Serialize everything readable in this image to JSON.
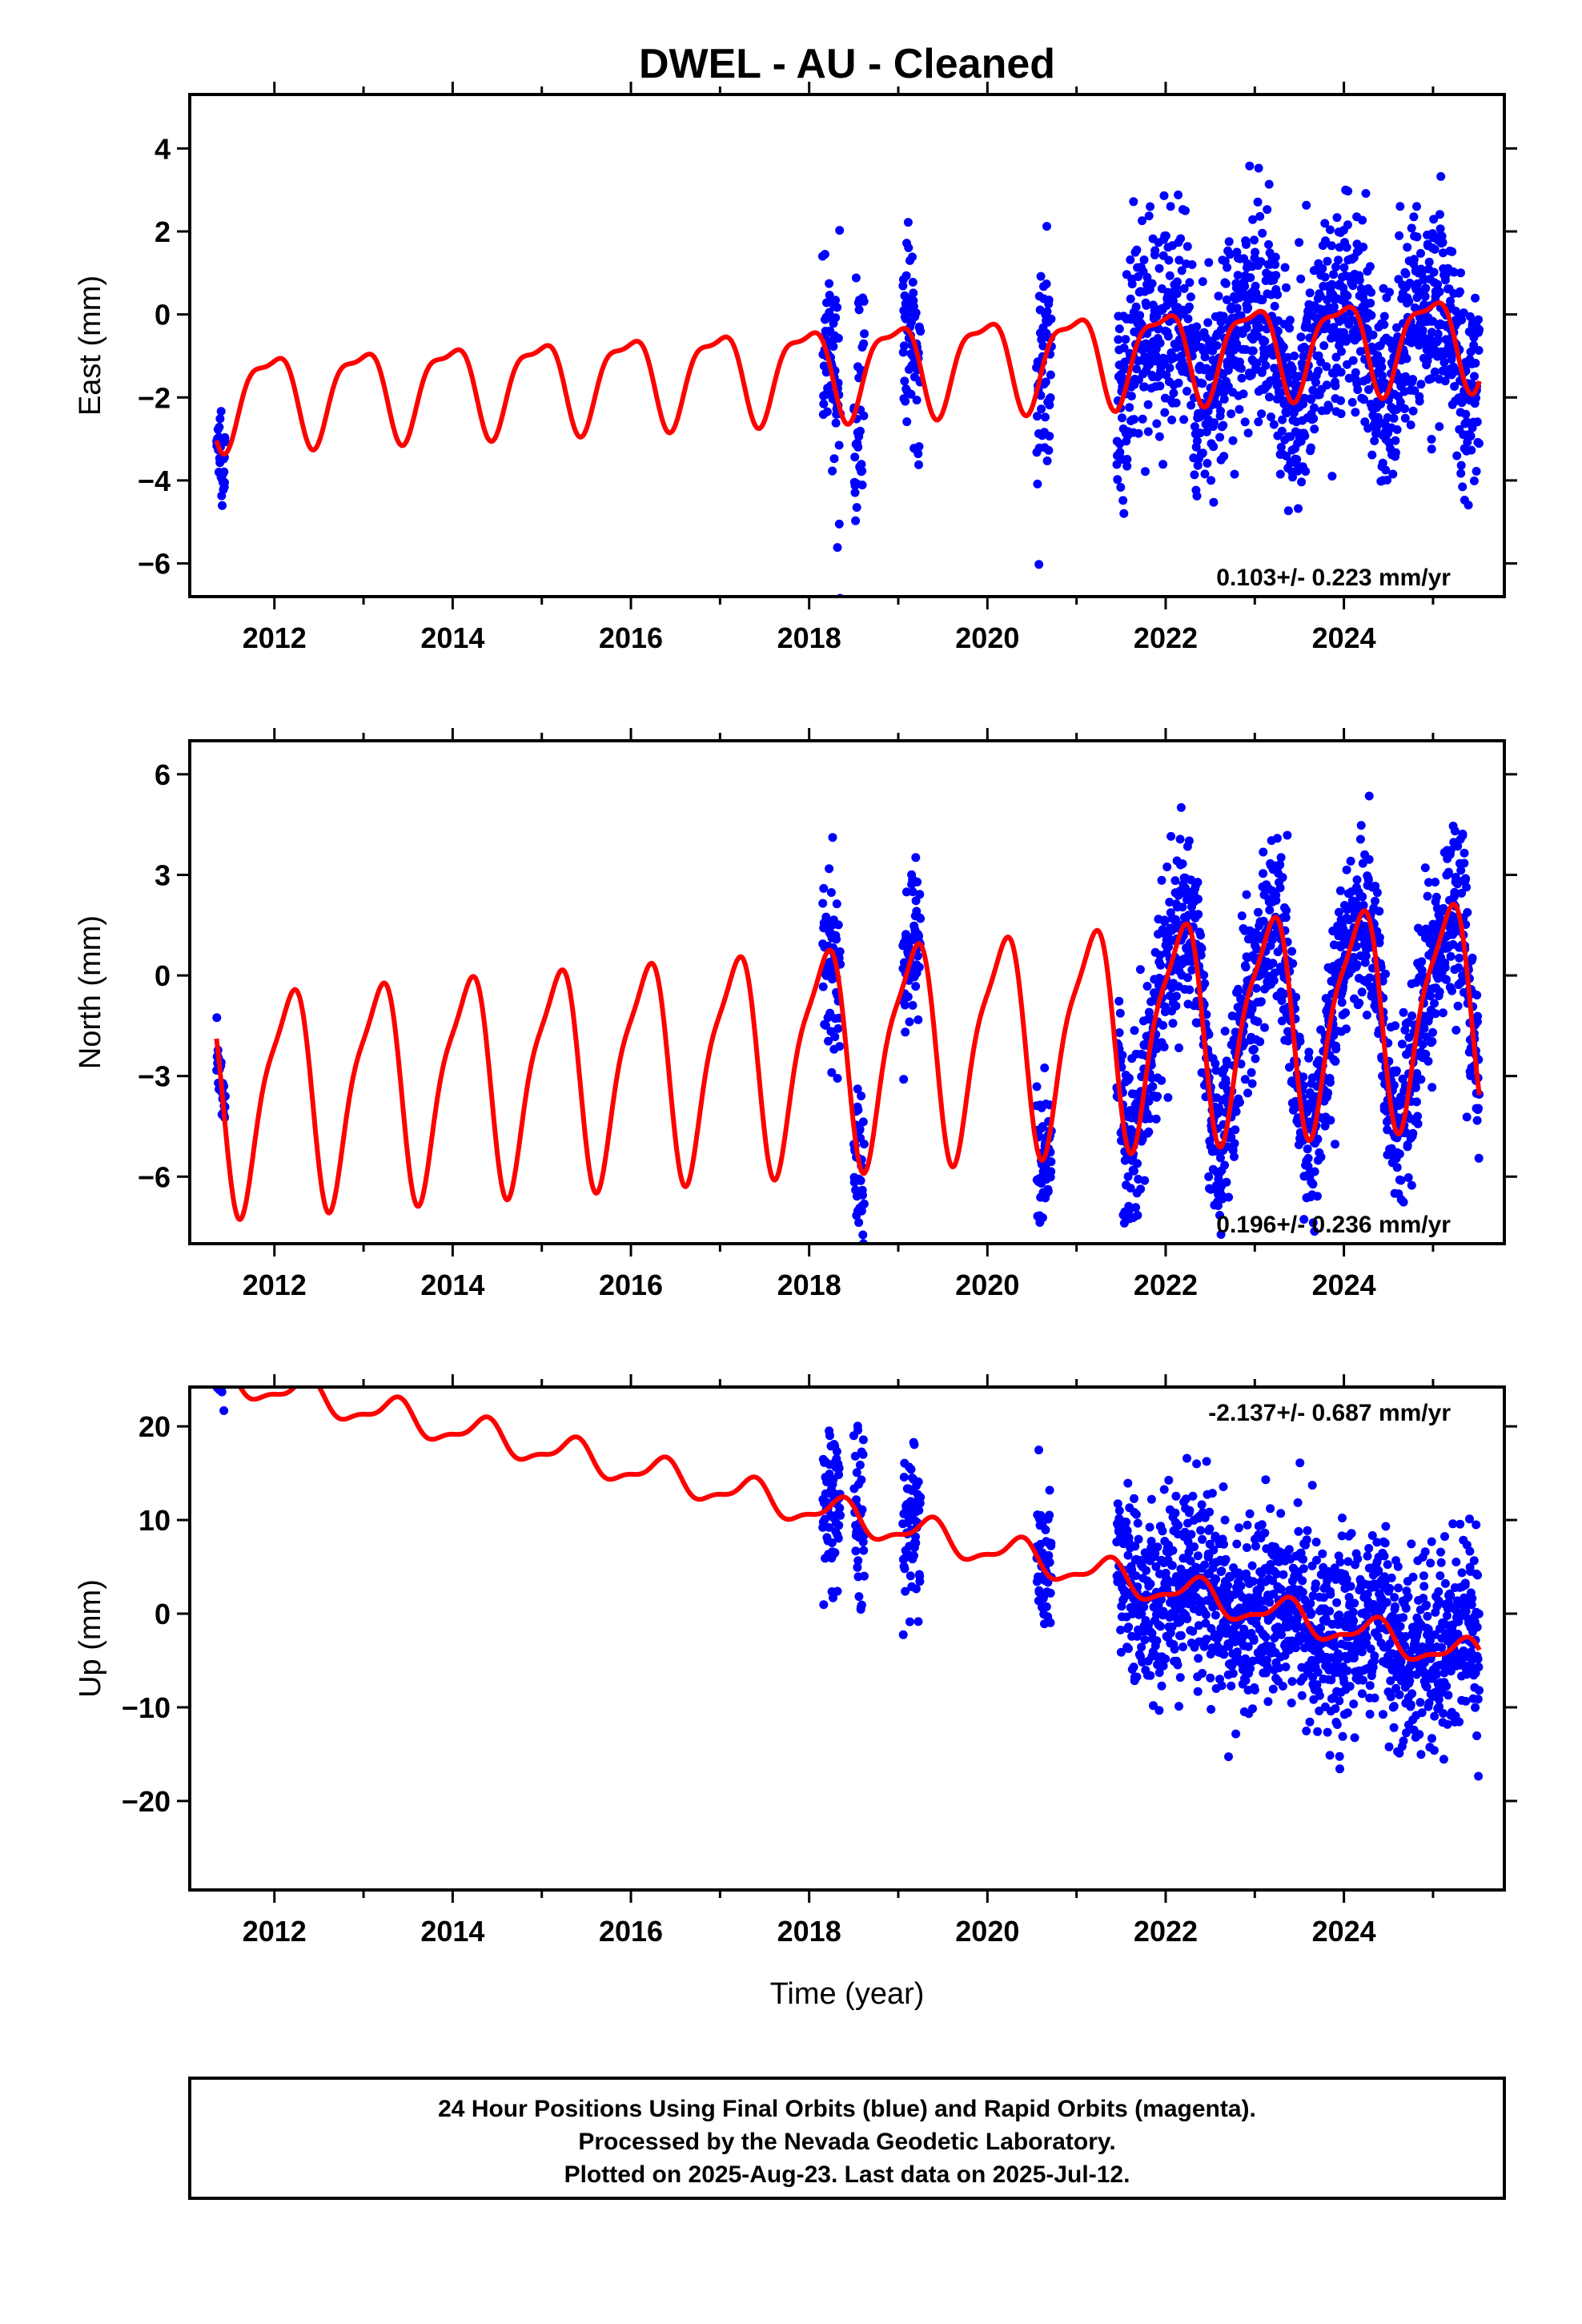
{
  "title": "DWEL  - AU - Cleaned",
  "xlabel": "Time (year)",
  "footer": [
    "24 Hour Positions Using Final Orbits (blue) and Rapid Orbits (magenta).",
    "Processed by the Nevada Geodetic Laboratory.",
    "Plotted on 2025-Aug-23. Last data on 2025-Jul-12."
  ],
  "colors": {
    "data": "#0000ff",
    "model": "#ff0000",
    "frame": "#000000"
  },
  "chart_data": [
    {
      "type": "scatter",
      "component": "East",
      "ylabel": "East (mm)",
      "xlim": [
        2011.05,
        2025.8
      ],
      "ylim": [
        -6.8,
        5.3
      ],
      "xticks": [
        2012,
        2014,
        2016,
        2018,
        2020,
        2022,
        2024
      ],
      "yticks": [
        -6,
        -4,
        -2,
        0,
        2,
        4
      ],
      "ytick_labels": [
        "−6",
        "−4",
        "−2",
        "0",
        "2",
        "4"
      ],
      "rate_label": "0.103+/- 0.223 mm/yr",
      "rate_position": "bottom-right",
      "model": {
        "offset": -1.3,
        "trend": 0.103,
        "amp1": 1.05,
        "phase1": 0.3,
        "amp2": 0.35,
        "phase2": 0.45,
        "ref_year": 2018
      },
      "data_segments": [
        {
          "start": 2011.35,
          "end": 2011.45,
          "sigma": 0.5
        },
        {
          "start": 2018.15,
          "end": 2018.35,
          "sigma": 1.3
        },
        {
          "start": 2018.5,
          "end": 2018.62,
          "sigma": 1.3
        },
        {
          "start": 2019.05,
          "end": 2019.25,
          "sigma": 1.2
        },
        {
          "start": 2020.55,
          "end": 2020.72,
          "sigma": 1.3
        },
        {
          "start": 2021.45,
          "end": 2025.52,
          "sigma": 1.25
        }
      ]
    },
    {
      "type": "scatter",
      "component": "North",
      "ylabel": "North (mm)",
      "xlim": [
        2011.05,
        2025.8
      ],
      "ylim": [
        -8.0,
        7.0
      ],
      "xticks": [
        2012,
        2014,
        2016,
        2018,
        2020,
        2022,
        2024
      ],
      "yticks": [
        -6,
        -3,
        0,
        3,
        6
      ],
      "ytick_labels": [
        "−6",
        "−3",
        "0",
        "3",
        "6"
      ],
      "rate_label": "0.196+/- 0.236 mm/yr",
      "rate_position": "bottom-right",
      "model": {
        "offset": -2.3,
        "trend": 0.196,
        "amp1": 3.1,
        "phase1": 0.1,
        "amp2": 0.8,
        "phase2": 0.3,
        "ref_year": 2018
      },
      "data_segments": [
        {
          "start": 2011.35,
          "end": 2011.45,
          "sigma": 0.5
        },
        {
          "start": 2018.15,
          "end": 2018.35,
          "sigma": 1.4
        },
        {
          "start": 2018.5,
          "end": 2018.62,
          "sigma": 1.3
        },
        {
          "start": 2019.05,
          "end": 2019.25,
          "sigma": 1.1
        },
        {
          "start": 2020.55,
          "end": 2020.72,
          "sigma": 1.1
        },
        {
          "start": 2021.45,
          "end": 2025.52,
          "sigma": 1.3
        }
      ]
    },
    {
      "type": "scatter",
      "component": "Up",
      "ylabel": "Up (mm)",
      "xlim": [
        2011.05,
        2025.8
      ],
      "ylim": [
        -29.5,
        24.2
      ],
      "xticks": [
        2012,
        2014,
        2016,
        2018,
        2020,
        2022,
        2024
      ],
      "yticks": [
        -20,
        -10,
        0,
        10,
        20
      ],
      "ytick_labels": [
        "−20",
        "−10",
        "0",
        "10",
        "20"
      ],
      "rate_label": "-2.137+/- 0.687 mm/yr",
      "rate_position": "top-right",
      "model": {
        "offset": 11.2,
        "trend": -2.137,
        "amp1": 1.6,
        "phase1": 0.9,
        "amp2": 0.6,
        "phase2": 0.2,
        "ref_year": 2018
      },
      "data_segments": [
        {
          "start": 2011.35,
          "end": 2011.45,
          "sigma": 2.5
        },
        {
          "start": 2018.15,
          "end": 2018.35,
          "sigma": 4.5
        },
        {
          "start": 2018.5,
          "end": 2018.62,
          "sigma": 4.0
        },
        {
          "start": 2019.05,
          "end": 2019.25,
          "sigma": 4.5
        },
        {
          "start": 2020.55,
          "end": 2020.72,
          "sigma": 3.0
        },
        {
          "start": 2021.45,
          "end": 2025.52,
          "sigma": 5.0
        }
      ]
    }
  ]
}
